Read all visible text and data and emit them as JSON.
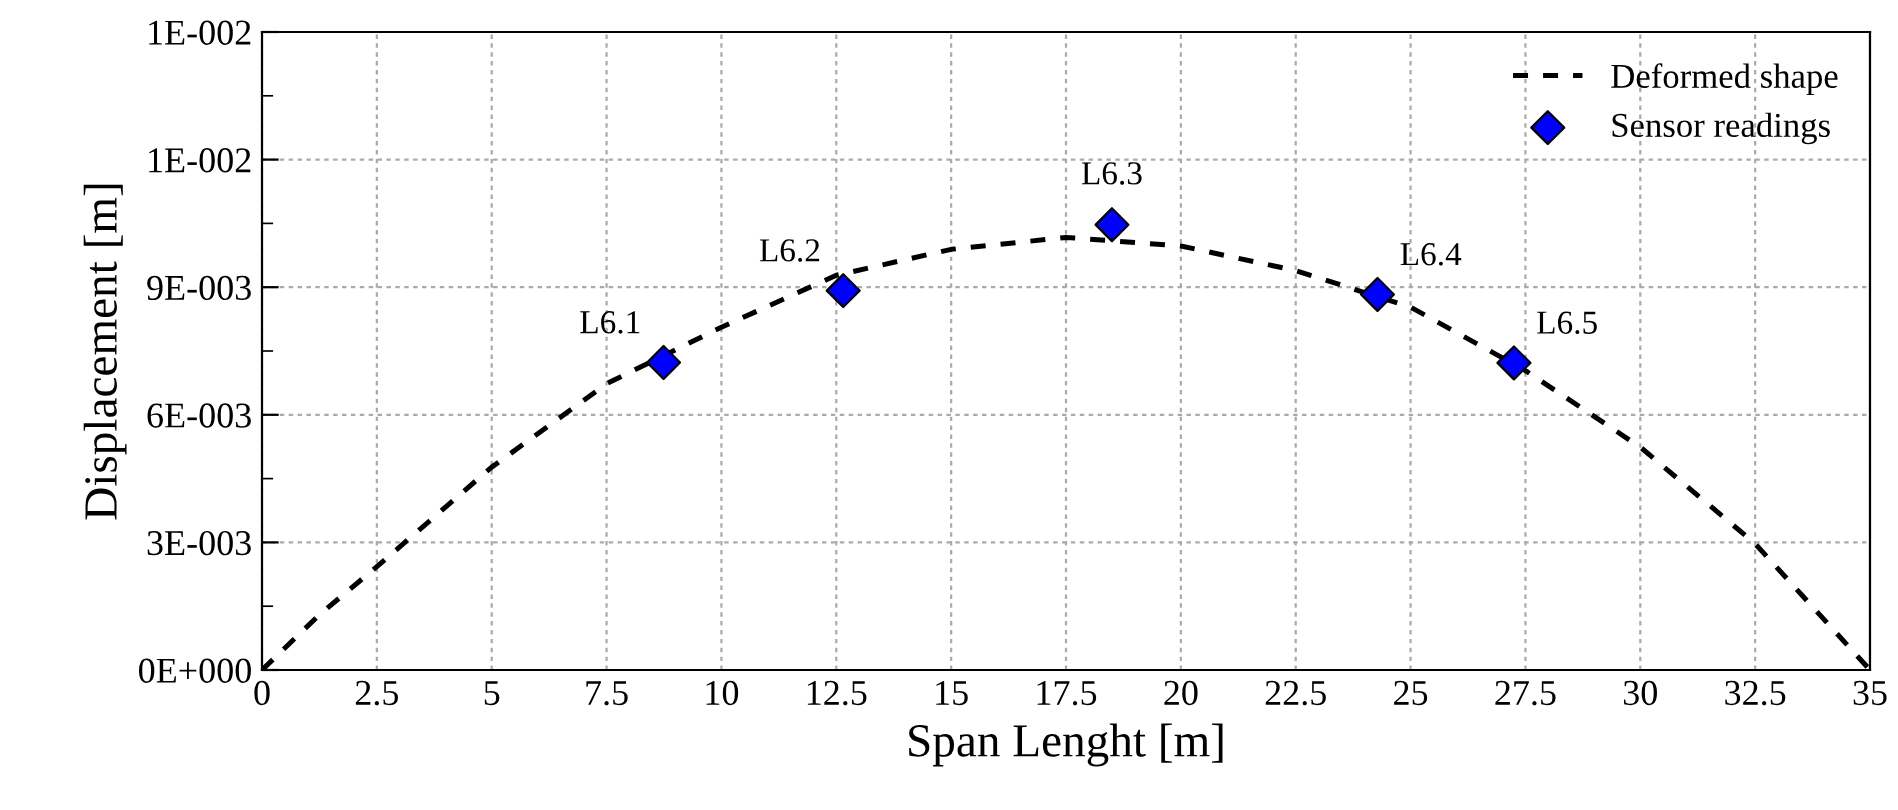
{
  "chart_data": {
    "type": "line",
    "xlabel": "Span Lenght [m]",
    "ylabel": "Displacement [m]",
    "series": [
      {
        "name": "Deformed shape",
        "color": "#000000",
        "line_style": "dashed",
        "marker": "none",
        "x": [
          0,
          1.25,
          2.5,
          5,
          7.5,
          10,
          12.5,
          15,
          17.5,
          20,
          22.5,
          25,
          27.5,
          30,
          32.5,
          35
        ],
        "values": [
          0,
          0.0013,
          0.00243,
          0.00477,
          0.00673,
          0.00806,
          0.00928,
          0.00989,
          0.01017,
          0.00997,
          0.00939,
          0.00853,
          0.00704,
          0.00524,
          0.00297,
          0
        ]
      },
      {
        "name": "Sensor readings",
        "type": "scatter",
        "color": "#0000ff",
        "marker": "diamond",
        "x": [
          8.74,
          12.65,
          18.5,
          24.28,
          27.25
        ],
        "values": [
          0.00723,
          0.00892,
          0.01047,
          0.00883,
          0.00722
        ]
      }
    ],
    "annotations": [
      {
        "text": "L6.1",
        "x": 8.74,
        "y": 0.00723
      },
      {
        "text": "L6.2",
        "x": 12.65,
        "y": 0.00892
      },
      {
        "text": "L6.3",
        "x": 18.5,
        "y": 0.01047
      },
      {
        "text": "L6.4",
        "x": 24.28,
        "y": 0.00883
      },
      {
        "text": "L6.5",
        "x": 27.25,
        "y": 0.00722
      }
    ],
    "xlim": [
      0,
      35
    ],
    "xticks": [
      0,
      2.5,
      5,
      7.5,
      10,
      12.5,
      15,
      17.5,
      20,
      22.5,
      25,
      27.5,
      30,
      32.5,
      35
    ],
    "ylim": [
      0,
      0.015
    ],
    "yticks": [
      {
        "value": 0,
        "label": "0E+000"
      },
      {
        "value": 0.0015,
        "label": null
      },
      {
        "value": 0.003,
        "label": "3E-003"
      },
      {
        "value": 0.0045,
        "label": null
      },
      {
        "value": 0.006,
        "label": "6E-003"
      },
      {
        "value": 0.0075,
        "label": null
      },
      {
        "value": 0.009,
        "label": "9E-003"
      },
      {
        "value": 0.0105,
        "label": null
      },
      {
        "value": 0.012,
        "label": "1E-002"
      },
      {
        "value": 0.0135,
        "label": null
      },
      {
        "value": 0.015,
        "label": "1E-002"
      }
    ],
    "grid": true,
    "legend": "top right"
  }
}
